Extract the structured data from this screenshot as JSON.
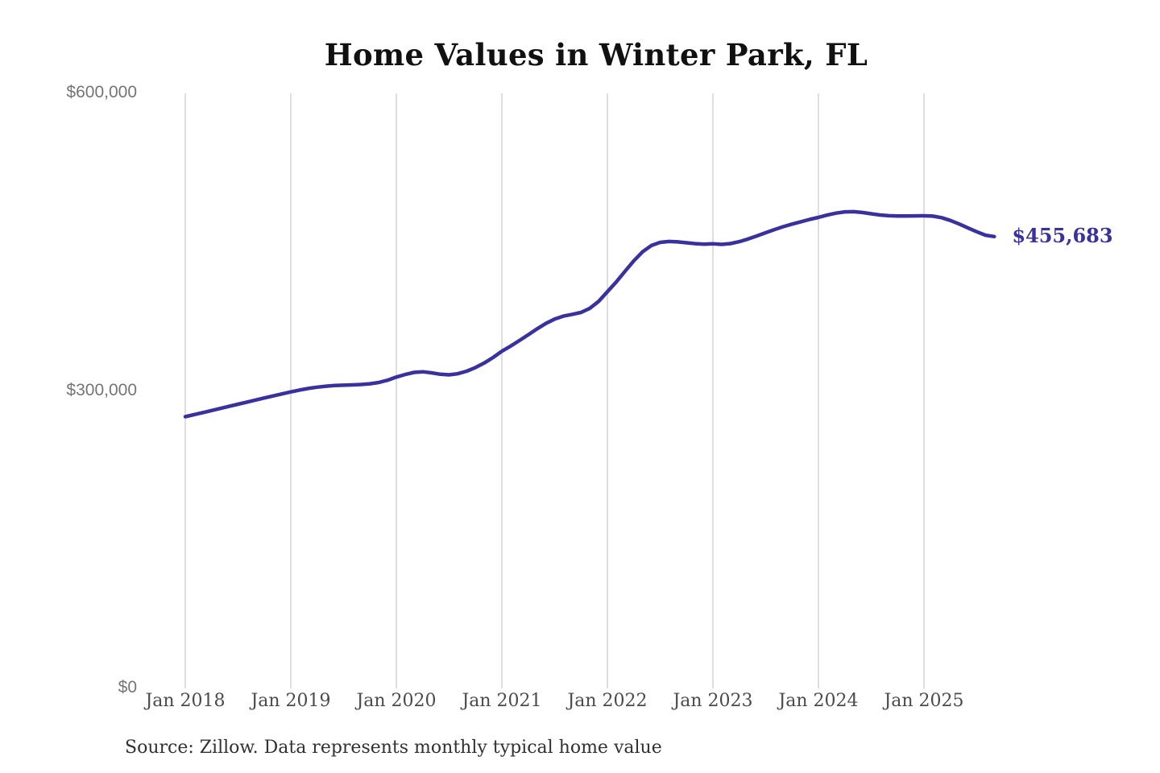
{
  "chart_data": {
    "type": "line",
    "title": "Home Values in Winter Park, FL",
    "series_name": "Monthly typical home value",
    "x_start": "Jan 2018",
    "x_end": "Sep 2025",
    "x_frequency": "monthly",
    "values": [
      274000,
      276100,
      278200,
      280300,
      282400,
      284500,
      286600,
      288700,
      290800,
      292900,
      295000,
      297000,
      299000,
      300900,
      302500,
      303800,
      304800,
      305400,
      305800,
      306100,
      306500,
      307200,
      308500,
      310800,
      314000,
      316600,
      318700,
      319300,
      318300,
      316800,
      316200,
      317400,
      319900,
      323600,
      328200,
      333700,
      340000,
      345200,
      350800,
      356700,
      362600,
      368000,
      372400,
      375400,
      377200,
      379200,
      383300,
      390300,
      400000,
      409800,
      420600,
      431200,
      440300,
      446600,
      449800,
      450700,
      450300,
      449400,
      448500,
      448000,
      448300,
      447800,
      448600,
      450500,
      453200,
      456300,
      459500,
      462700,
      465600,
      468200,
      470600,
      472900,
      475000,
      477300,
      479300,
      480600,
      480700,
      479900,
      478600,
      477400,
      476700,
      476400,
      476400,
      476500,
      476600,
      476300,
      474700,
      471900,
      468300,
      464300,
      460500,
      457000,
      455683
    ],
    "x_ticks": [
      {
        "month_index": 0,
        "label": "Jan 2018"
      },
      {
        "month_index": 12,
        "label": "Jan 2019"
      },
      {
        "month_index": 24,
        "label": "Jan 2020"
      },
      {
        "month_index": 36,
        "label": "Jan 2021"
      },
      {
        "month_index": 48,
        "label": "Jan 2022"
      },
      {
        "month_index": 60,
        "label": "Jan 2023"
      },
      {
        "month_index": 72,
        "label": "Jan 2024"
      },
      {
        "month_index": 84,
        "label": "Jan 2025"
      }
    ],
    "y_ticks": [
      {
        "value": 0,
        "label": "$0"
      },
      {
        "value": 300000,
        "label": "$300,000"
      },
      {
        "value": 600000,
        "label": "$600,000"
      }
    ],
    "ylim": [
      0,
      600000
    ],
    "grid": "vertical-only",
    "legend": "none",
    "latest_value": 455683,
    "end_label": "$455,683",
    "source_note": "Source: Zillow. Data represents monthly typical home value",
    "colors": {
      "line": "#39319d",
      "end_label_text": "#39319d",
      "grid": "#cccccc",
      "y_tick_text": "#757575",
      "x_tick_text": "#4b4b4b",
      "title_text": "#111111",
      "source_text": "#313131",
      "background": "#ffffff"
    }
  }
}
